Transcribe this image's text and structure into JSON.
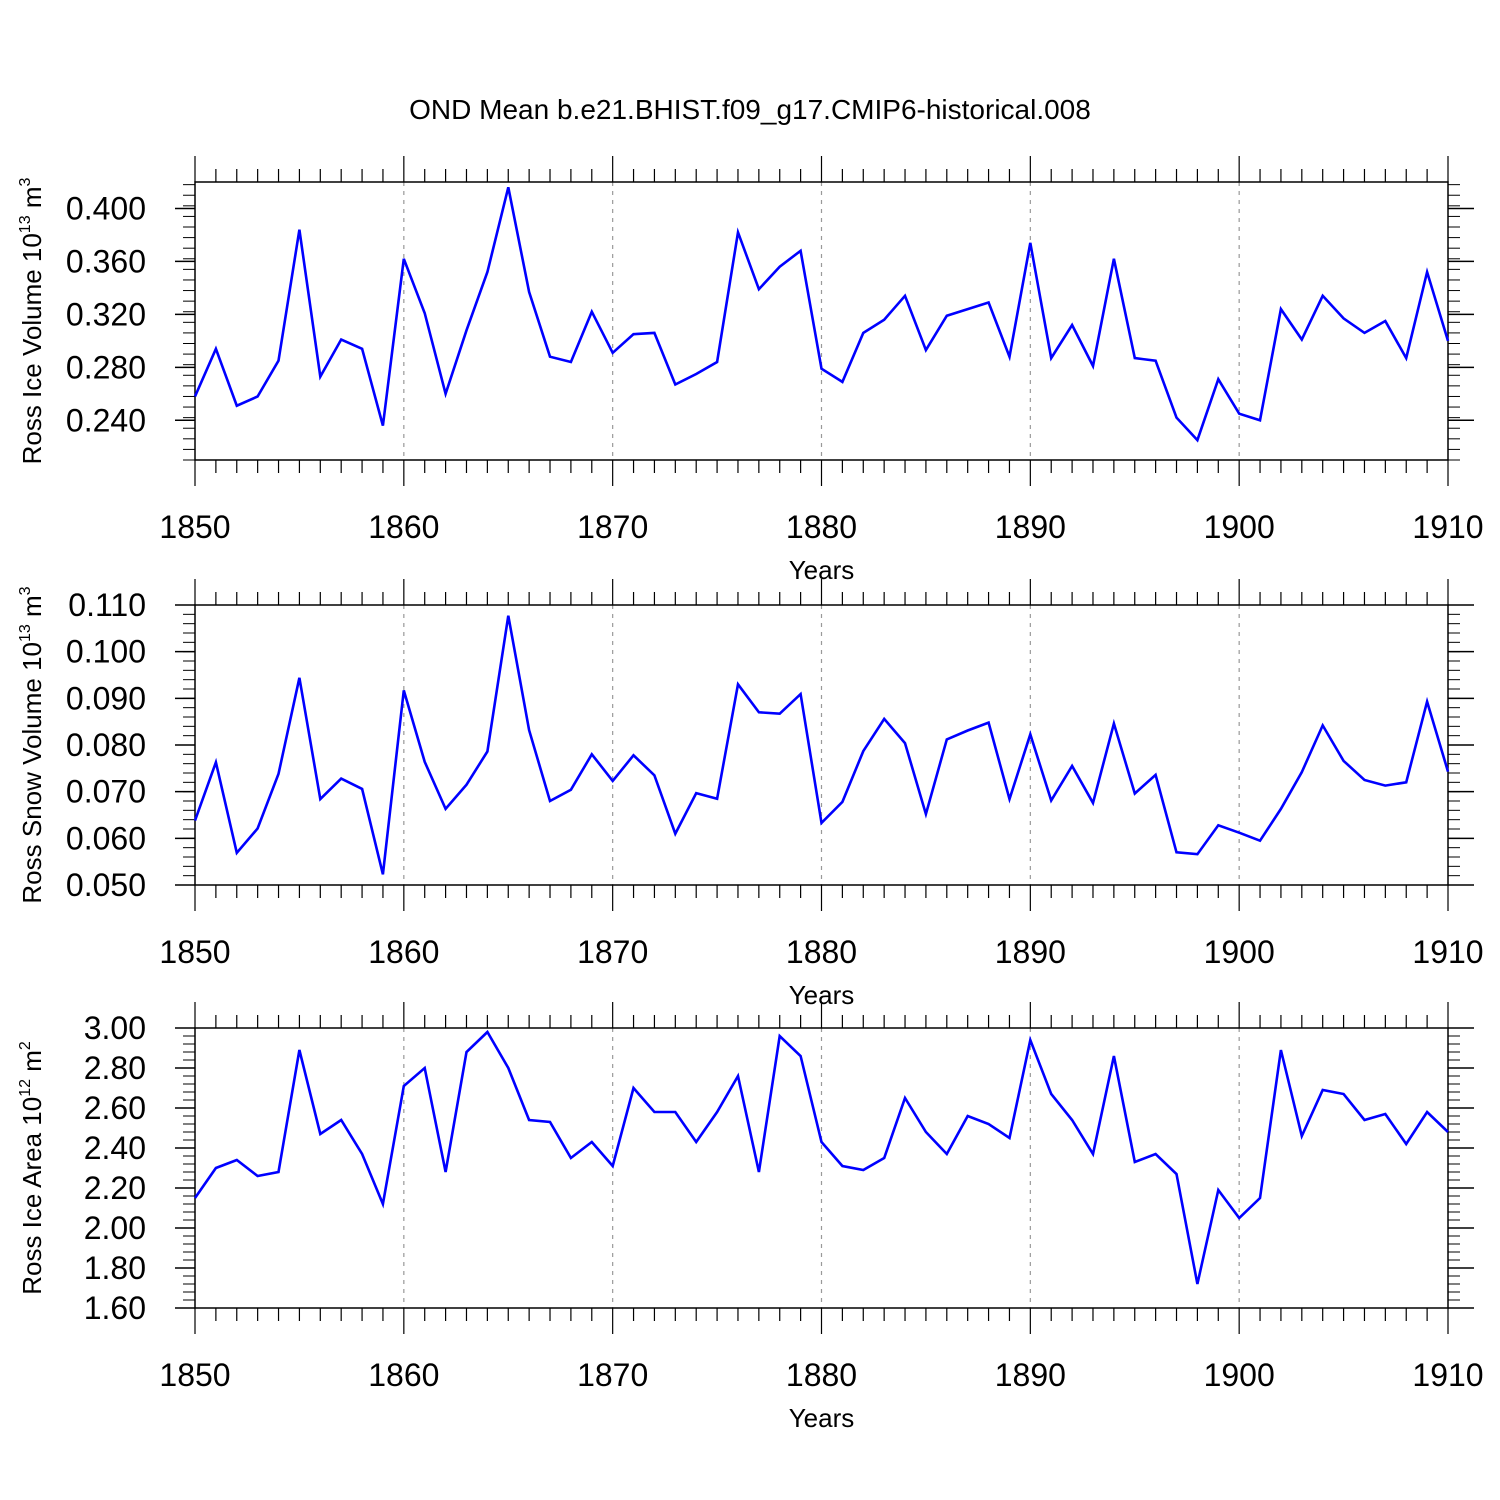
{
  "title": "OND Mean b.e21.BHIST.f09_g17.CMIP6-historical.008",
  "colors": {
    "line": "#0000ff",
    "axis": "#000000",
    "grid": "#999999"
  },
  "chart_data": [
    {
      "type": "line",
      "ylabel_main": "Ross Ice Volume 10",
      "ylabel_exp": "13",
      "ylabel_unit": " m",
      "ylabel_unit_exp": "3",
      "xlabel": "Years",
      "xlim": [
        1850,
        1910
      ],
      "ylim": [
        0.21,
        0.42
      ],
      "yticks": [
        0.24,
        0.28,
        0.32,
        0.36,
        0.4
      ],
      "ytick_labels": [
        "0.240",
        "0.280",
        "0.320",
        "0.360",
        "0.400"
      ],
      "yminor_step": 0.008,
      "xticks": [
        1850,
        1860,
        1870,
        1880,
        1890,
        1900,
        1910
      ],
      "xtick_labels": [
        "1850",
        "1860",
        "1870",
        "1880",
        "1890",
        "1900",
        "1910"
      ],
      "grid_x": [
        1860,
        1870,
        1880,
        1890,
        1900
      ],
      "x_start": 1850,
      "values": [
        0.258,
        0.294,
        0.251,
        0.258,
        0.285,
        0.384,
        0.273,
        0.301,
        0.294,
        0.236,
        0.362,
        0.321,
        0.26,
        0.308,
        0.352,
        0.416,
        0.337,
        0.288,
        0.284,
        0.322,
        0.291,
        0.305,
        0.306,
        0.267,
        0.275,
        0.284,
        0.382,
        0.339,
        0.356,
        0.368,
        0.279,
        0.269,
        0.306,
        0.316,
        0.334,
        0.293,
        0.319,
        0.324,
        0.329,
        0.288,
        0.374,
        0.287,
        0.312,
        0.281,
        0.362,
        0.287,
        0.285,
        0.242,
        0.225,
        0.271,
        0.245,
        0.24,
        0.324,
        0.301,
        0.334,
        0.317,
        0.306,
        0.315,
        0.287,
        0.352,
        0.3
      ]
    },
    {
      "type": "line",
      "ylabel_main": "Ross Snow Volume 10",
      "ylabel_exp": "13",
      "ylabel_unit": " m",
      "ylabel_unit_exp": "3",
      "xlabel": "Years",
      "xlim": [
        1850,
        1910
      ],
      "ylim": [
        0.05,
        0.11
      ],
      "yticks": [
        0.05,
        0.06,
        0.07,
        0.08,
        0.09,
        0.1,
        0.11
      ],
      "ytick_labels": [
        "0.050",
        "0.060",
        "0.070",
        "0.080",
        "0.090",
        "0.100",
        "0.110"
      ],
      "yminor_step": 0.002,
      "xticks": [
        1850,
        1860,
        1870,
        1880,
        1890,
        1900,
        1910
      ],
      "xtick_labels": [
        "1850",
        "1860",
        "1870",
        "1880",
        "1890",
        "1900",
        "1910"
      ],
      "grid_x": [
        1860,
        1870,
        1880,
        1890,
        1900
      ],
      "x_start": 1850,
      "values": [
        0.0638,
        0.0763,
        0.0569,
        0.0621,
        0.0738,
        0.0944,
        0.0684,
        0.0728,
        0.0706,
        0.0523,
        0.0917,
        0.0764,
        0.0663,
        0.0715,
        0.0786,
        0.1077,
        0.0832,
        0.068,
        0.0704,
        0.078,
        0.0723,
        0.0778,
        0.0735,
        0.061,
        0.0697,
        0.0685,
        0.093,
        0.087,
        0.0867,
        0.0909,
        0.0633,
        0.0678,
        0.0787,
        0.0856,
        0.0804,
        0.0652,
        0.0812,
        0.0831,
        0.0848,
        0.0684,
        0.0823,
        0.0681,
        0.0755,
        0.0676,
        0.0846,
        0.0696,
        0.0736,
        0.057,
        0.0566,
        0.0628,
        0.0612,
        0.0595,
        0.0663,
        0.0742,
        0.0842,
        0.0766,
        0.0725,
        0.0713,
        0.072,
        0.0893,
        0.0743
      ]
    },
    {
      "type": "line",
      "ylabel_main": "Ross Ice Area 10",
      "ylabel_exp": "12",
      "ylabel_unit": " m",
      "ylabel_unit_exp": "2",
      "xlabel": "Years",
      "xlim": [
        1850,
        1910
      ],
      "ylim": [
        1.6,
        3.0
      ],
      "yticks": [
        1.6,
        1.8,
        2.0,
        2.2,
        2.4,
        2.6,
        2.8,
        3.0
      ],
      "ytick_labels": [
        "1.60",
        "1.80",
        "2.00",
        "2.20",
        "2.40",
        "2.60",
        "2.80",
        "3.00"
      ],
      "yminor_step": 0.04,
      "xticks": [
        1850,
        1860,
        1870,
        1880,
        1890,
        1900,
        1910
      ],
      "xtick_labels": [
        "1850",
        "1860",
        "1870",
        "1880",
        "1890",
        "1900",
        "1910"
      ],
      "grid_x": [
        1860,
        1870,
        1880,
        1890,
        1900
      ],
      "x_start": 1850,
      "values": [
        2.15,
        2.3,
        2.34,
        2.26,
        2.28,
        2.89,
        2.47,
        2.54,
        2.37,
        2.12,
        2.71,
        2.8,
        2.28,
        2.88,
        2.98,
        2.8,
        2.54,
        2.53,
        2.35,
        2.43,
        2.31,
        2.7,
        2.58,
        2.58,
        2.43,
        2.58,
        2.76,
        2.28,
        2.96,
        2.86,
        2.43,
        2.31,
        2.29,
        2.35,
        2.65,
        2.48,
        2.37,
        2.56,
        2.52,
        2.45,
        2.94,
        2.67,
        2.54,
        2.37,
        2.86,
        2.33,
        2.37,
        2.27,
        1.72,
        2.19,
        2.05,
        2.15,
        2.89,
        2.46,
        2.69,
        2.67,
        2.54,
        2.57,
        2.42,
        2.58,
        2.48
      ]
    }
  ]
}
